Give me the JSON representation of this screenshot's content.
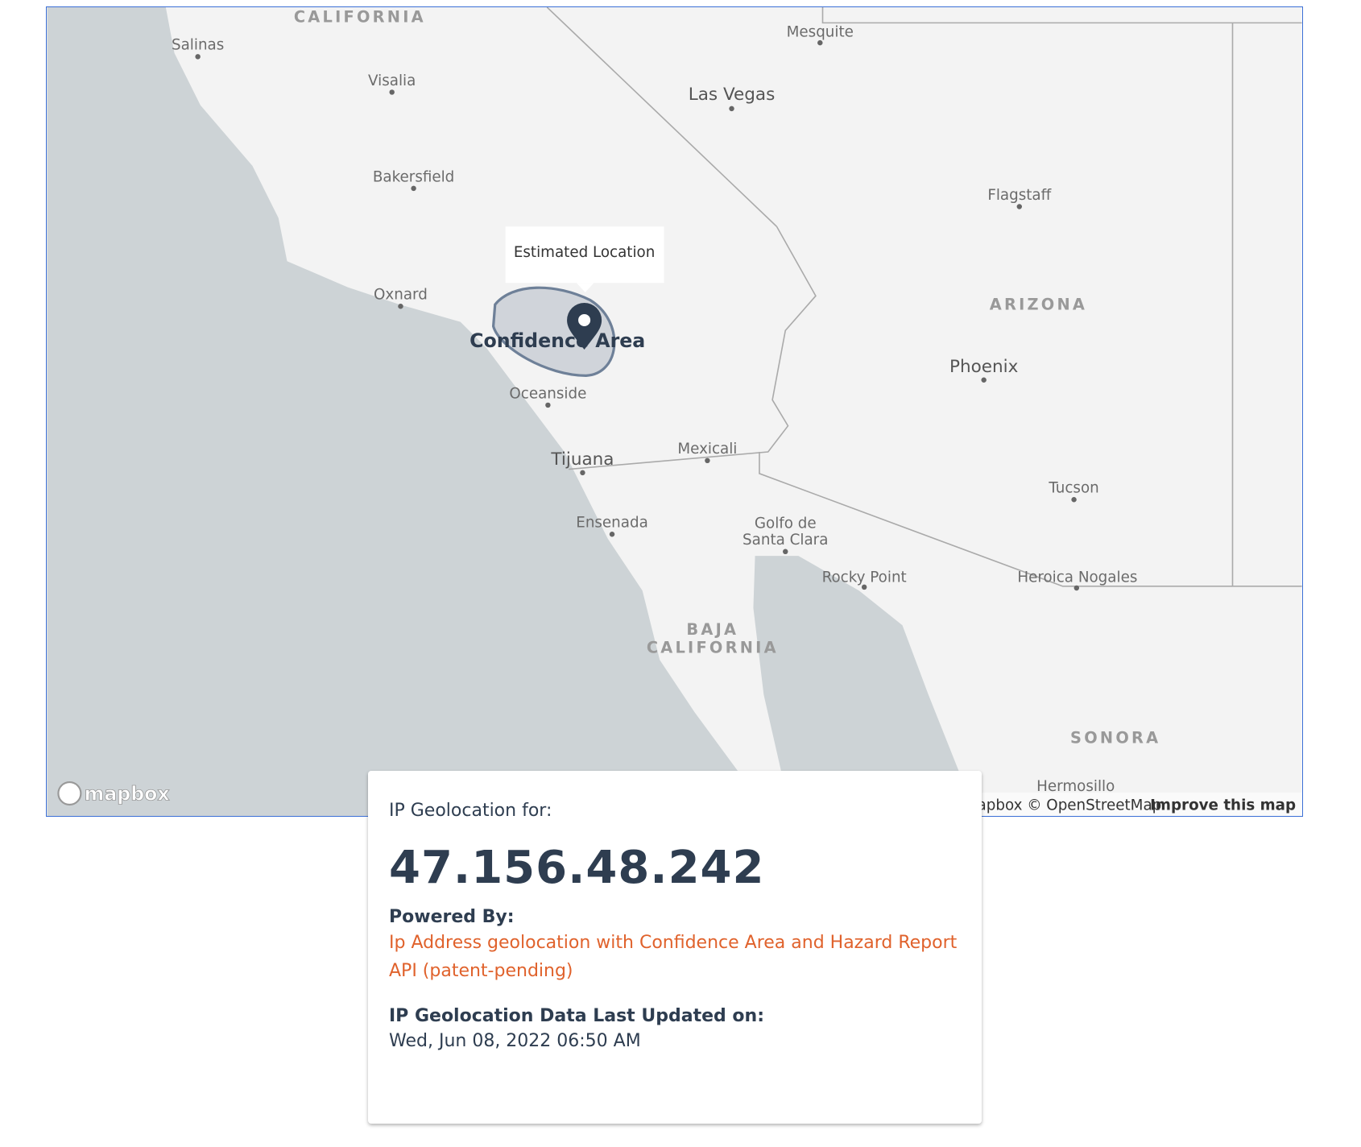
{
  "map": {
    "labels": {
      "california": "CALIFORNIA",
      "salinas": "Salinas",
      "visalia": "Visalia",
      "bakersfield": "Bakersfield",
      "oxnard": "Oxnard",
      "oceanside": "Oceanside",
      "tijuana": "Tijuana",
      "ensenada": "Ensenada",
      "mexicali": "Mexicali",
      "mesquite": "Mesquite",
      "las_vegas": "Las Vegas",
      "flagstaff": "Flagstaff",
      "arizona": "ARIZONA",
      "phoenix": "Phoenix",
      "tucson": "Tucson",
      "heroica_nogales": "Heroica Nogales",
      "rocky_point": "Rocky Point",
      "golfo_line1": "Golfo de",
      "golfo_line2": "Santa Clara",
      "baja_line1": "BAJA",
      "baja_line2": "CALIFORNIA",
      "sonora": "SONORA",
      "hermosillo": "Hermosillo"
    },
    "popup": "Estimated Location",
    "area_label": "Confidence Area",
    "logo": "mapbox",
    "attribution": "© Mapbox © OpenStreetMap",
    "improve": "Improve this map"
  },
  "card": {
    "heading": "IP Geolocation for:",
    "ip": "47.156.48.242",
    "powered_label": "Powered By:",
    "powered_link": "Ip Address geolocation with Confidence Area and Hazard Report API (patent-pending)",
    "updated_label": "IP Geolocation Data Last Updated on:",
    "updated_value": "Wed, Jun 08, 2022 06:50 AM"
  }
}
